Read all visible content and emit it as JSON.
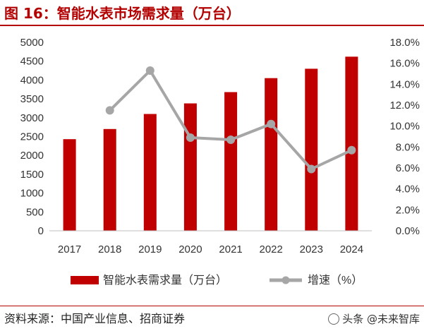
{
  "header": {
    "title": "图 16：智能水表市场需求量（万台）"
  },
  "footer": {
    "source": "资料来源：中国产业信息、招商证券",
    "watermark": "头条 @未来智库"
  },
  "colors": {
    "bar": "#c00000",
    "line": "#a6a6a6",
    "accent": "#b30000"
  },
  "chart_data": {
    "type": "bar",
    "categories": [
      "2017",
      "2018",
      "2019",
      "2020",
      "2021",
      "2022",
      "2023",
      "2024"
    ],
    "series": [
      {
        "name": "智能水表需求量（万台）",
        "type": "bar",
        "axis": "left",
        "values": [
          2430,
          2700,
          3100,
          3380,
          3680,
          4050,
          4300,
          4620
        ]
      },
      {
        "name": "增速（%）",
        "type": "line",
        "axis": "right",
        "values": [
          null,
          11.5,
          15.3,
          8.9,
          8.7,
          10.2,
          5.9,
          7.7
        ]
      }
    ],
    "y_left": {
      "min": 0,
      "max": 5000,
      "step": 500,
      "ticks": [
        "0",
        "500",
        "1000",
        "1500",
        "2000",
        "2500",
        "3000",
        "3500",
        "4000",
        "4500",
        "5000"
      ]
    },
    "y_right": {
      "min": 0,
      "max": 18,
      "step": 2,
      "ticks": [
        "0.0%",
        "2.0%",
        "4.0%",
        "6.0%",
        "8.0%",
        "10.0%",
        "12.0%",
        "14.0%",
        "16.0%",
        "18.0%"
      ]
    },
    "grid": false,
    "legend_position": "bottom"
  }
}
